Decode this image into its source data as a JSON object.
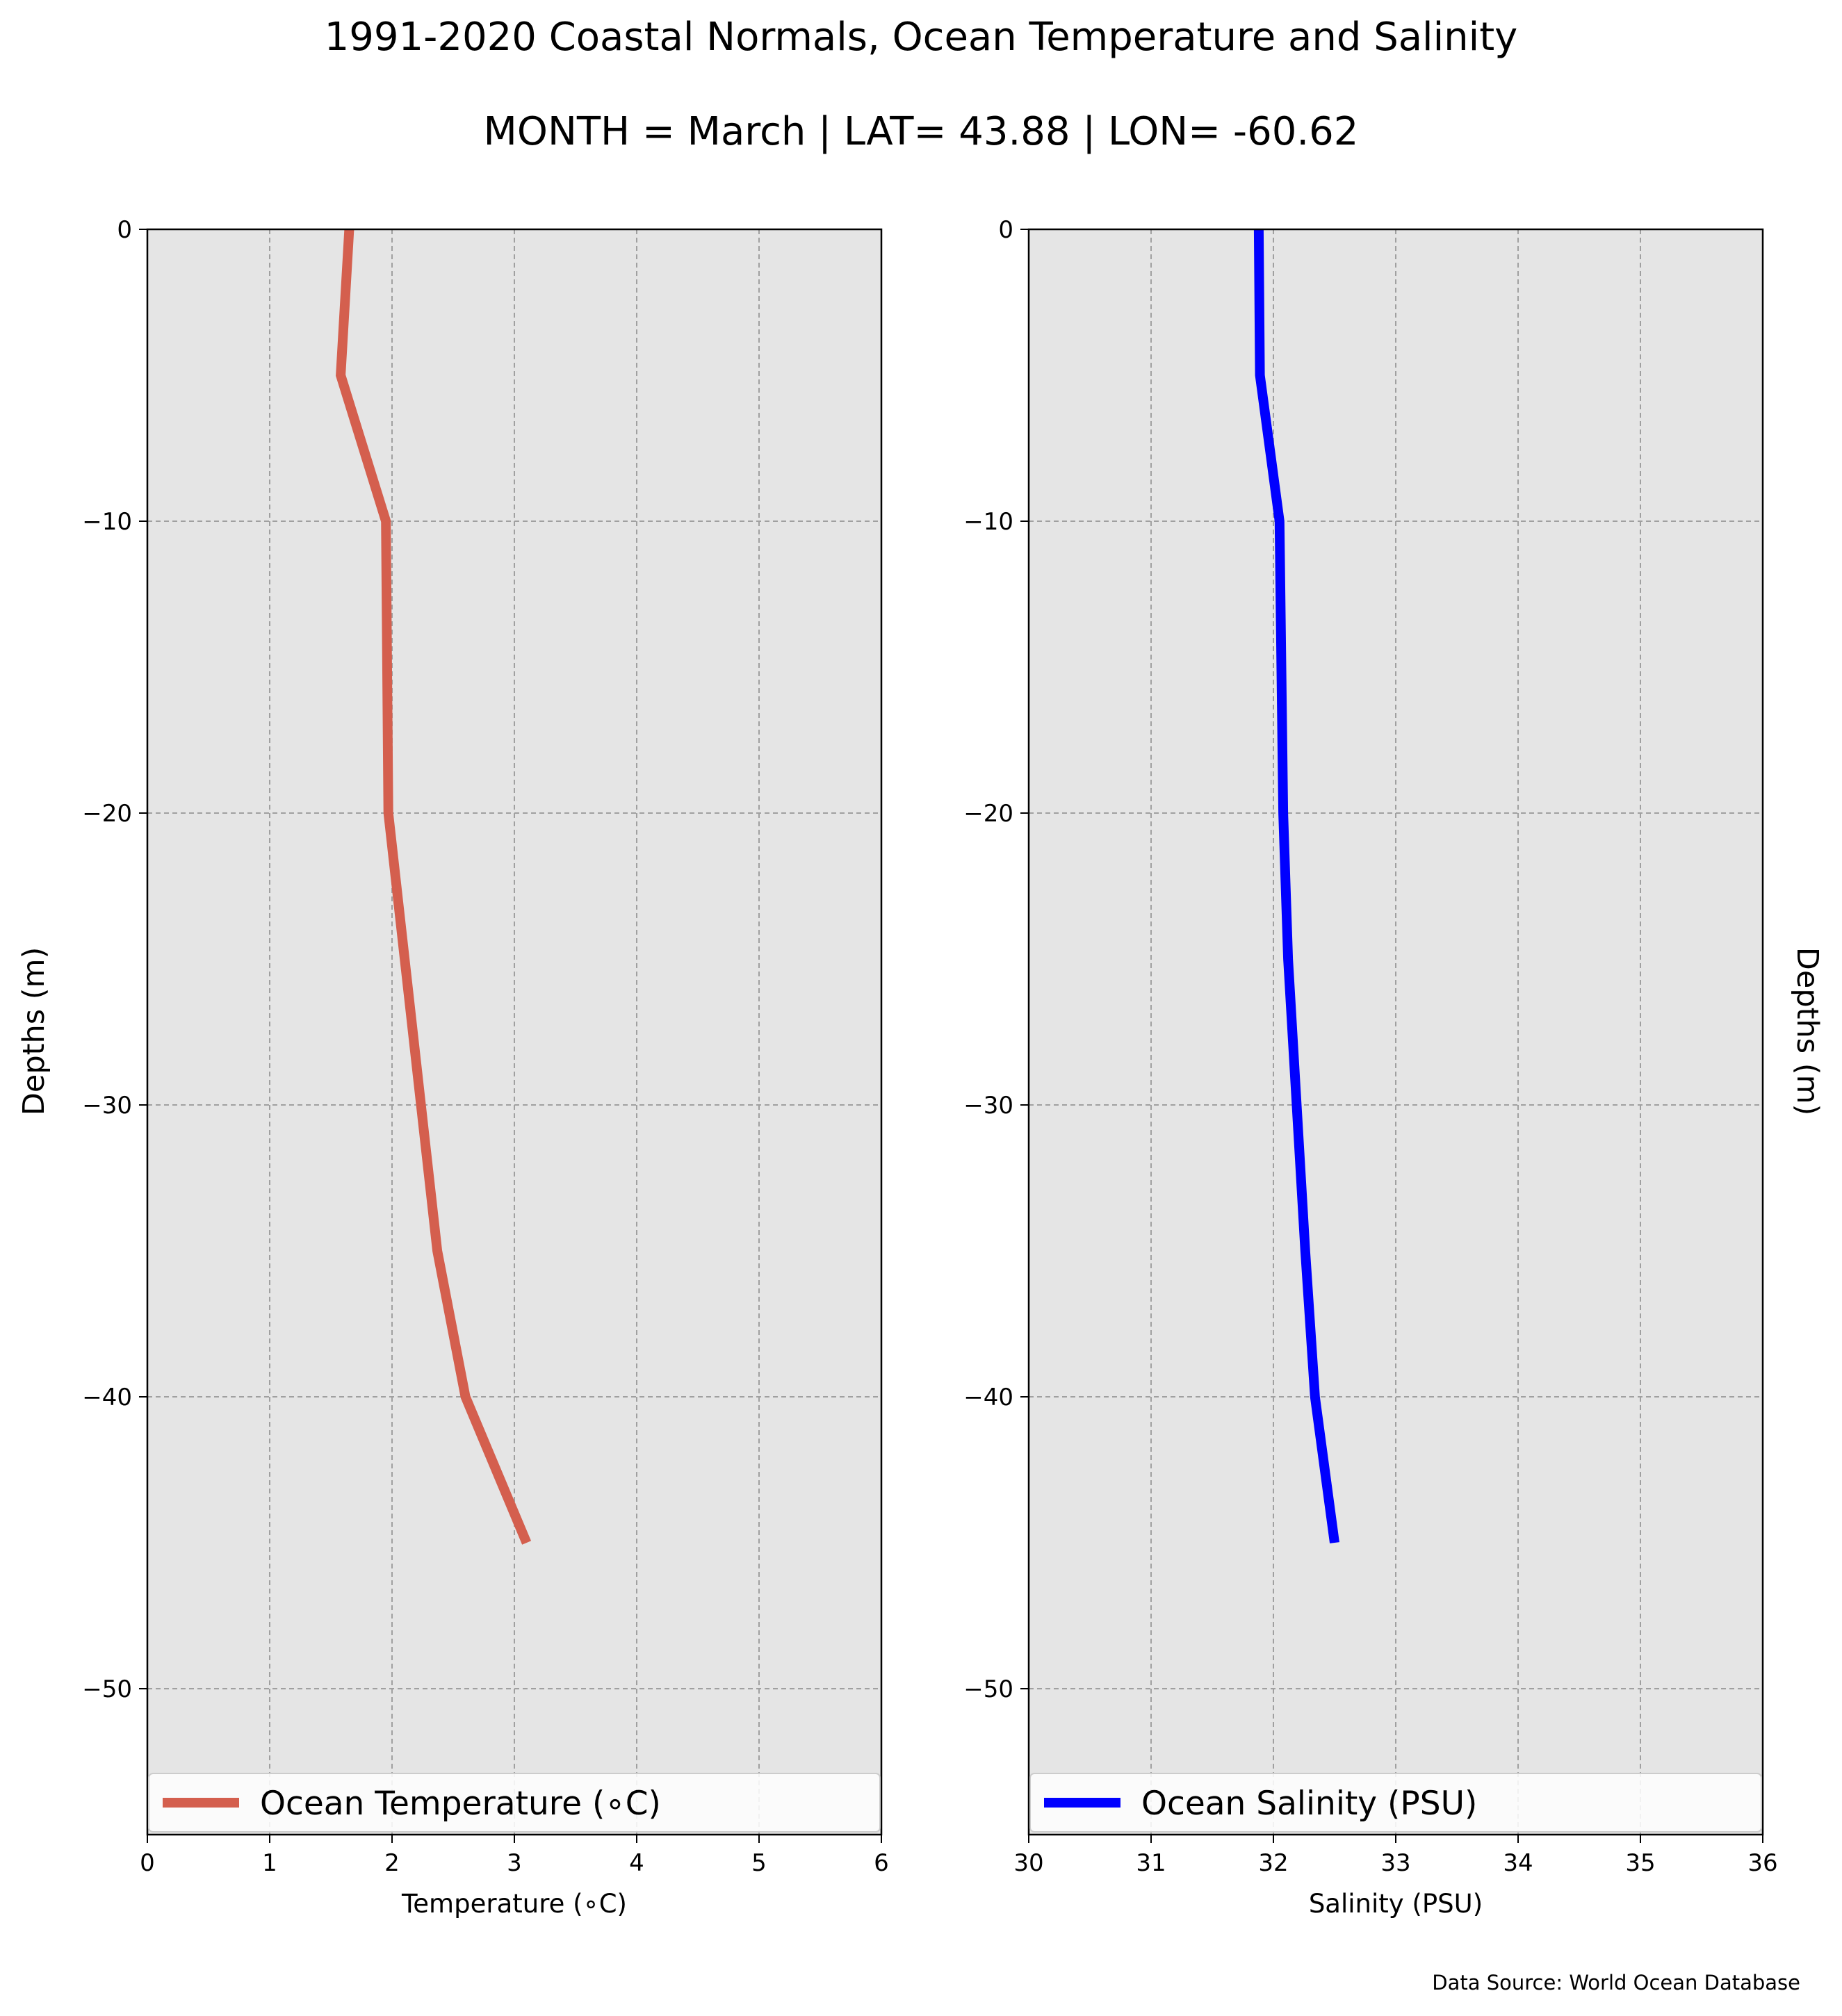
{
  "title": "1991-2020 Coastal Normals, Ocean Temperature and Salinity",
  "subtitle": "MONTH = March | LAT= 43.88 | LON= -60.62",
  "source_note": "Data Source: World Ocean Database",
  "colors": {
    "plot_background": "#e5e5e5",
    "temperature_line": "#d45f4e",
    "salinity_line": "#0000ff",
    "grid": "#a0a0a0"
  },
  "chart_data": [
    {
      "type": "line",
      "xlabel": "Temperature ($^\\circ$C)",
      "xlabel_display": "Temperature (∘C)",
      "ylabel": "Depths (m)",
      "ylabel_side": "left",
      "xlim": [
        0,
        6
      ],
      "ylim": [
        -55,
        0
      ],
      "xticks": [
        "0",
        "1",
        "2",
        "3",
        "4",
        "5",
        "6"
      ],
      "yticks": [
        "0",
        "−10",
        "−20",
        "−30",
        "−40",
        "−50"
      ],
      "ytick_values": [
        0,
        -10,
        -20,
        -30,
        -40,
        -50
      ],
      "xtick_values": [
        0,
        1,
        2,
        3,
        4,
        5,
        6
      ],
      "grid": true,
      "legend_placement": "lower center",
      "series": [
        {
          "name": "Ocean Temperature (∘C)",
          "color": "#d45f4e",
          "x": [
            1.65,
            1.58,
            1.95,
            1.97,
            2.37,
            2.6,
            3.1
          ],
          "y": [
            0,
            -5,
            -10,
            -20,
            -35,
            -40,
            -45
          ]
        }
      ]
    },
    {
      "type": "line",
      "xlabel": "Salinity (PSU)",
      "ylabel": "Depths (m)",
      "ylabel_side": "right",
      "xlim": [
        30,
        36
      ],
      "ylim": [
        -55,
        0
      ],
      "xticks": [
        "30",
        "31",
        "32",
        "33",
        "34",
        "35",
        "36"
      ],
      "yticks": [
        "0",
        "−10",
        "−20",
        "−30",
        "−40",
        "−50"
      ],
      "ytick_values": [
        0,
        -10,
        -20,
        -30,
        -40,
        -50
      ],
      "xtick_values": [
        30,
        31,
        32,
        33,
        34,
        35,
        36
      ],
      "grid": true,
      "legend_placement": "lower center",
      "series": [
        {
          "name": "Ocean Salinity (PSU)",
          "color": "#0000ff",
          "x": [
            31.88,
            31.89,
            32.05,
            32.08,
            32.12,
            32.26,
            32.34,
            32.5
          ],
          "y": [
            0,
            -5,
            -10,
            -20,
            -25,
            -35,
            -40,
            -45
          ]
        }
      ]
    }
  ]
}
